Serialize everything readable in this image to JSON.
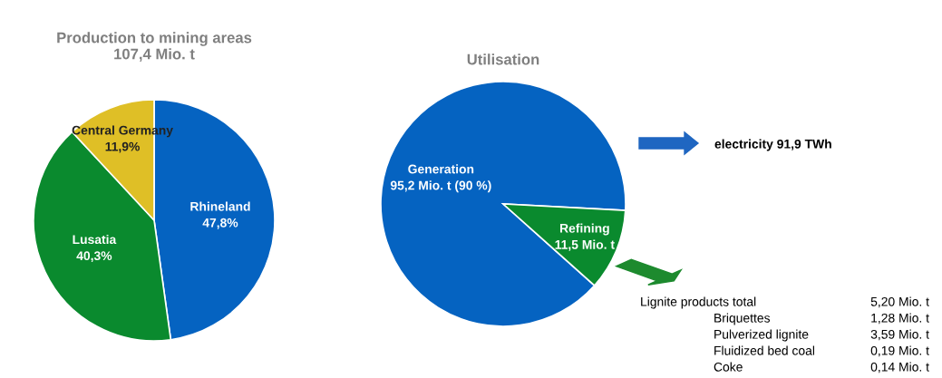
{
  "chart_data": [
    {
      "type": "pie",
      "title": "Production to mining areas\n107,4 Mio. t",
      "categories": [
        "Rhineland",
        "Lusatia",
        "Central Germany"
      ],
      "values": [
        47.8,
        40.3,
        11.9
      ],
      "colors": [
        "#0563c1",
        "#0a8a2e",
        "#dfbf26"
      ],
      "value_labels": [
        "47,8%",
        "40,3%",
        "11,9%"
      ]
    },
    {
      "type": "pie",
      "title": "Utilisation",
      "categories": [
        "Generation",
        "Refining"
      ],
      "values": [
        95.2,
        11.5
      ],
      "colors": [
        "#0563c1",
        "#0a8a2e"
      ],
      "value_labels": [
        "95,2 Mio. t (90 %)",
        "11,5 Mio. t"
      ],
      "annotations": [
        "electricity 91,9 TWh",
        "Lignite products total",
        "5,20 Mio. t",
        "Briquettes",
        "1,28 Mio. t",
        "Pulverized lignite",
        "3,59 Mio. t",
        "Fluidized bed coal",
        "0,19 Mio. t",
        "Coke",
        "0,14 Mio. t"
      ]
    }
  ]
}
